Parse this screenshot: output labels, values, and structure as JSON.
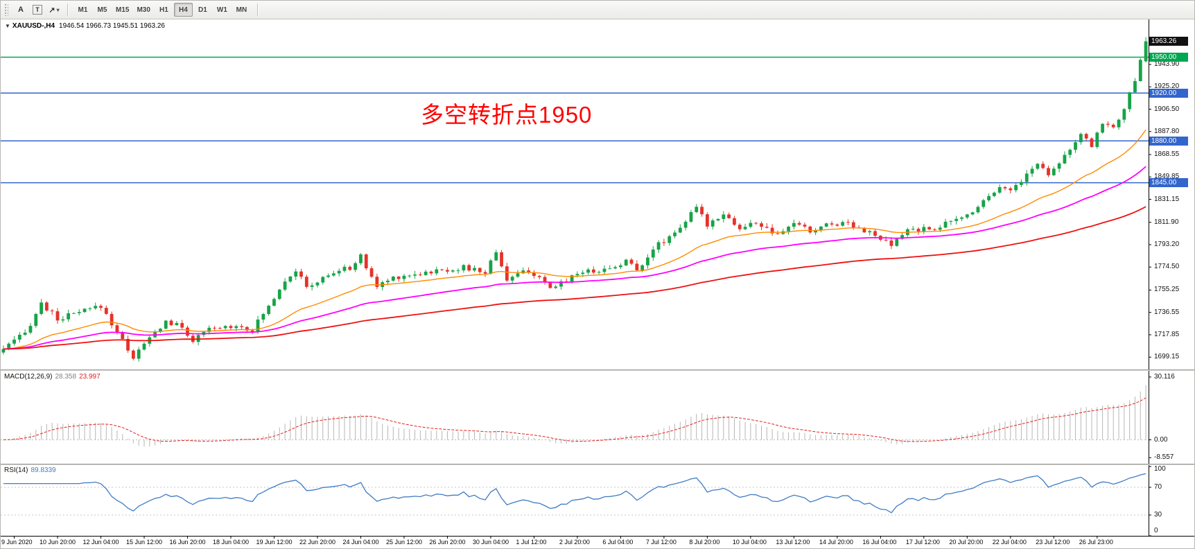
{
  "toolbar": {
    "tools": [
      {
        "name": "text-tool",
        "label": "A"
      },
      {
        "name": "text-label-tool",
        "label": "T"
      },
      {
        "name": "arrows-tool",
        "label": "↗"
      }
    ],
    "caret": "▾",
    "timeframes": [
      "M1",
      "M5",
      "M15",
      "M30",
      "H1",
      "H4",
      "D1",
      "W1",
      "MN"
    ],
    "selected_timeframe": "H4"
  },
  "chart": {
    "title_symbol": "XAUUSD-,H4",
    "title_ohlc": "1946.54 1966.73 1945.51 1963.26",
    "collapse_icon": "▼",
    "annotation": {
      "text": "多空转折点1950",
      "color": "#FF0000"
    },
    "current_price": {
      "label": "1963.26",
      "value": 1963.26,
      "color": "#111111"
    },
    "hlines": [
      {
        "label": "1950.00",
        "price": 1950,
        "color": "#00A651"
      },
      {
        "label": "1920.00",
        "price": 1920,
        "color": "#3366CC"
      },
      {
        "label": "1880.00",
        "price": 1880,
        "color": "#3366CC"
      },
      {
        "label": "1845.00",
        "price": 1845,
        "color": "#3366CC"
      }
    ],
    "y_axis_labels": [
      "1943.90",
      "1925.20",
      "1906.50",
      "1887.80",
      "1868.55",
      "1849.85",
      "1831.15",
      "1811.90",
      "1793.20",
      "1774.50",
      "1755.25",
      "1736.55",
      "1717.85",
      "1699.15"
    ],
    "x_axis_labels": [
      "9 Jun 2020",
      "10 Jun 20:00",
      "12 Jun 04:00",
      "15 Jun 12:00",
      "16 Jun 20:00",
      "18 Jun 04:00",
      "19 Jun 12:00",
      "22 Jun 20:00",
      "24 Jun 04:00",
      "25 Jun 12:00",
      "26 Jun 20:00",
      "30 Jun 04:00",
      "1 Jul 12:00",
      "2 Jul 20:00",
      "6 Jul 04:00",
      "7 Jul 12:00",
      "8 Jul 20:00",
      "10 Jul 04:00",
      "13 Jul 12:00",
      "14 Jul 20:00",
      "16 Jul 04:00",
      "17 Jul 12:00",
      "20 Jul 20:00",
      "22 Jul 04:00",
      "23 Jul 12:00",
      "26 Jul 23:00"
    ]
  },
  "macd": {
    "label": "MACD(12,26,9)",
    "value_main": "28.358",
    "value_main_color": "#808080",
    "value_signal": "23.997",
    "value_signal_color": "#E02020",
    "histogram_color": "#B6B6B6",
    "signal_color": "#E02020",
    "axis": [
      {
        "label": "30.116",
        "value": 30.116
      },
      {
        "label": "0.00",
        "value": 0
      },
      {
        "label": "-8.557",
        "value": -8.557
      }
    ]
  },
  "rsi": {
    "label": "RSI(14)",
    "value": "89.8339",
    "value_color": "#3E7BC4",
    "line_color": "#3E7BC4",
    "levels": [
      70,
      30
    ],
    "axis": [
      {
        "label": "100",
        "value": 100
      },
      {
        "label": "70",
        "value": 70
      },
      {
        "label": "30",
        "value": 30
      },
      {
        "label": "0",
        "value": 0
      }
    ]
  },
  "chart_data": {
    "type": "candlestick",
    "symbol": "XAUUSD-",
    "timeframe": "H4",
    "candle_count": 212,
    "price_axis_range": [
      1690,
      1981
    ],
    "up_color": "#18A348",
    "down_color": "#E5332A",
    "close_anchors": [
      [
        0,
        1706
      ],
      [
        4,
        1719
      ],
      [
        7,
        1744
      ],
      [
        10,
        1731
      ],
      [
        13,
        1735
      ],
      [
        18,
        1742
      ],
      [
        21,
        1720
      ],
      [
        24,
        1699
      ],
      [
        27,
        1715
      ],
      [
        30,
        1729
      ],
      [
        33,
        1724
      ],
      [
        35,
        1713
      ],
      [
        38,
        1722
      ],
      [
        43,
        1726
      ],
      [
        46,
        1722
      ],
      [
        49,
        1742
      ],
      [
        52,
        1764
      ],
      [
        54,
        1772
      ],
      [
        56,
        1757
      ],
      [
        61,
        1770
      ],
      [
        64,
        1774
      ],
      [
        66,
        1783
      ],
      [
        69,
        1758
      ],
      [
        72,
        1766
      ],
      [
        78,
        1770
      ],
      [
        85,
        1774
      ],
      [
        89,
        1770
      ],
      [
        91,
        1788
      ],
      [
        93,
        1764
      ],
      [
        97,
        1772
      ],
      [
        101,
        1756
      ],
      [
        106,
        1770
      ],
      [
        112,
        1773
      ],
      [
        115,
        1780
      ],
      [
        117,
        1772
      ],
      [
        120,
        1790
      ],
      [
        123,
        1800
      ],
      [
        126,
        1813
      ],
      [
        128,
        1824
      ],
      [
        130,
        1810
      ],
      [
        133,
        1820
      ],
      [
        136,
        1806
      ],
      [
        139,
        1812
      ],
      [
        143,
        1800
      ],
      [
        146,
        1812
      ],
      [
        149,
        1804
      ],
      [
        152,
        1810
      ],
      [
        156,
        1812
      ],
      [
        160,
        1803
      ],
      [
        164,
        1792
      ],
      [
        167,
        1806
      ],
      [
        171,
        1806
      ],
      [
        175,
        1812
      ],
      [
        178,
        1818
      ],
      [
        181,
        1830
      ],
      [
        184,
        1843
      ],
      [
        186,
        1838
      ],
      [
        189,
        1852
      ],
      [
        191,
        1861
      ],
      [
        193,
        1853
      ],
      [
        196,
        1868
      ],
      [
        199,
        1884
      ],
      [
        201,
        1876
      ],
      [
        203,
        1896
      ],
      [
        205,
        1890
      ],
      [
        207,
        1908
      ],
      [
        209,
        1929
      ],
      [
        210,
        1946.5
      ],
      [
        211,
        1963.26
      ]
    ],
    "last_candle": {
      "open": 1946.54,
      "high": 1966.73,
      "low": 1945.51,
      "close": 1963.26
    },
    "moving_averages": [
      {
        "type": "EMA",
        "period": 25,
        "color": "#FF8A00",
        "width": 1.4
      },
      {
        "type": "EMA",
        "period": 55,
        "color": "#FF00FF",
        "width": 1.8
      },
      {
        "type": "EMA",
        "period": 120,
        "color": "#EE1111",
        "width": 1.8
      }
    ],
    "horizontal_levels": [
      1950,
      1920,
      1880,
      1845
    ],
    "indicators": [
      {
        "name": "MACD",
        "params": [
          12,
          26,
          9
        ],
        "last_values": [
          28.358,
          23.997
        ],
        "axis_range": [
          -8.557,
          30.116
        ]
      },
      {
        "name": "RSI",
        "params": [
          14
        ],
        "last_value": 89.8339,
        "axis_range": [
          0,
          100
        ],
        "levels": [
          30,
          70
        ]
      }
    ]
  }
}
